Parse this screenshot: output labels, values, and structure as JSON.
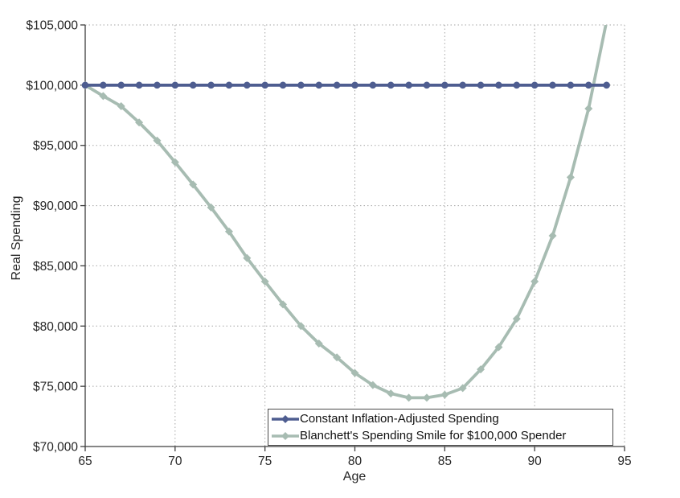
{
  "chart_data": {
    "type": "line",
    "title": "",
    "xlabel": "Age",
    "ylabel": "Real Spending",
    "xlim": [
      65,
      95
    ],
    "ylim": [
      70000,
      105000
    ],
    "x_ticks": [
      65,
      70,
      75,
      80,
      85,
      90,
      95
    ],
    "y_ticks": [
      70000,
      75000,
      80000,
      85000,
      90000,
      95000,
      100000,
      105000
    ],
    "y_tick_labels": [
      "$70,000",
      "$75,000",
      "$80,000",
      "$85,000",
      "$90,000",
      "$95,000",
      "$100,000",
      "$105,000"
    ],
    "grid": "dotted",
    "legend_position": "inside-bottom-right",
    "x": [
      65,
      66,
      67,
      68,
      69,
      70,
      71,
      72,
      73,
      74,
      75,
      76,
      77,
      78,
      79,
      80,
      81,
      82,
      83,
      84,
      85,
      86,
      87,
      88,
      89,
      90,
      91,
      92,
      93,
      94
    ],
    "series": [
      {
        "name": "Constant Inflation-Adjusted Spending",
        "color": "#4e5d90",
        "marker": "circle",
        "values": [
          100000,
          100000,
          100000,
          100000,
          100000,
          100000,
          100000,
          100000,
          100000,
          100000,
          100000,
          100000,
          100000,
          100000,
          100000,
          100000,
          100000,
          100000,
          100000,
          100000,
          100000,
          100000,
          100000,
          100000,
          100000,
          100000,
          100000,
          100000,
          100000,
          100000
        ]
      },
      {
        "name": "Blanchett's Spending Smile for $100,000 Spender",
        "color": "#a7bcb2",
        "marker": "diamond",
        "values": [
          100000,
          99100,
          98250,
          96900,
          95400,
          93600,
          91750,
          89850,
          87850,
          85650,
          83700,
          81800,
          80000,
          78550,
          77400,
          76100,
          75100,
          74400,
          74050,
          74050,
          74300,
          74850,
          76400,
          78250,
          80600,
          83700,
          87500,
          92350,
          98050,
          105300
        ]
      }
    ],
    "colors": {
      "grid": "#a6a6a6",
      "axis": "#3f3f3f",
      "text": "#262626",
      "background": "#ffffff",
      "legend_border": "#4a4a4a"
    }
  }
}
